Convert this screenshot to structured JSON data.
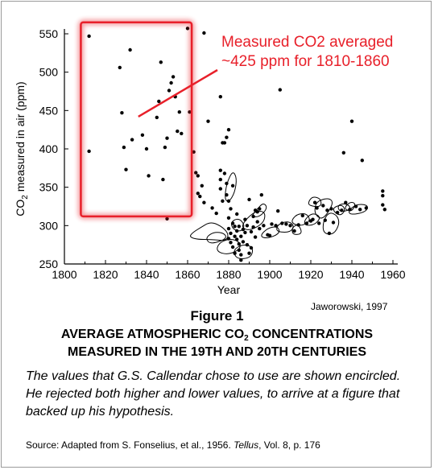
{
  "chart_data": {
    "type": "scatter",
    "title": "",
    "xlabel": "Year",
    "ylabel_parts": [
      "CO",
      "2",
      " measured in air (ppm)"
    ],
    "xlim": [
      1800,
      1965
    ],
    "ylim": [
      250,
      555
    ],
    "xticks": [
      1800,
      1820,
      1840,
      1860,
      1880,
      1900,
      1920,
      1940,
      1960
    ],
    "yticks": [
      250,
      300,
      350,
      400,
      450,
      500,
      550
    ],
    "grid": false,
    "credit": "Jaworowski, 1997",
    "annotation": {
      "line1": "Measured CO2 averaged",
      "line2": "~425 ppm for 1810-1860",
      "color": "#e8202a",
      "box_color": "#e8202a",
      "box_range": {
        "x": [
          1808,
          1862
        ],
        "y": [
          312,
          565
        ]
      },
      "arrow_from": [
        1836,
        442
      ]
    },
    "points": [
      [
        1812,
        547
      ],
      [
        1812,
        397
      ],
      [
        1827,
        506
      ],
      [
        1828,
        447
      ],
      [
        1829,
        402
      ],
      [
        1830,
        373
      ],
      [
        1832,
        529
      ],
      [
        1833,
        412
      ],
      [
        1838,
        418
      ],
      [
        1840,
        400
      ],
      [
        1841,
        365
      ],
      [
        1845,
        441
      ],
      [
        1846,
        462
      ],
      [
        1847,
        513
      ],
      [
        1848,
        360
      ],
      [
        1849,
        402
      ],
      [
        1850,
        414
      ],
      [
        1850,
        309
      ],
      [
        1851,
        476
      ],
      [
        1852,
        486
      ],
      [
        1853,
        494
      ],
      [
        1854,
        468
      ],
      [
        1855,
        423
      ],
      [
        1856,
        448
      ],
      [
        1857,
        420
      ],
      [
        1860,
        557
      ],
      [
        1861,
        448
      ],
      [
        1863,
        396
      ],
      [
        1864,
        369
      ],
      [
        1865,
        365
      ],
      [
        1865,
        342
      ],
      [
        1867,
        352
      ],
      [
        1866,
        338
      ],
      [
        1868,
        551
      ],
      [
        1868,
        330
      ],
      [
        1870,
        436
      ],
      [
        1872,
        323
      ],
      [
        1874,
        316
      ],
      [
        1876,
        468
      ],
      [
        1876,
        372
      ],
      [
        1876,
        360
      ],
      [
        1876,
        348
      ],
      [
        1877,
        408
      ],
      [
        1877,
        332
      ],
      [
        1878,
        408
      ],
      [
        1878,
        368
      ],
      [
        1879,
        415
      ],
      [
        1879,
        355
      ],
      [
        1879,
        340
      ],
      [
        1880,
        425
      ],
      [
        1880,
        332
      ],
      [
        1880,
        310
      ],
      [
        1880,
        296
      ],
      [
        1880,
        283
      ],
      [
        1881,
        322
      ],
      [
        1881,
        290
      ],
      [
        1881,
        278
      ],
      [
        1882,
        352
      ],
      [
        1882,
        303
      ],
      [
        1882,
        272
      ],
      [
        1883,
        299
      ],
      [
        1883,
        286
      ],
      [
        1883,
        264
      ],
      [
        1884,
        315
      ],
      [
        1884,
        293
      ],
      [
        1884,
        282
      ],
      [
        1885,
        299
      ],
      [
        1885,
        276
      ],
      [
        1885,
        268
      ],
      [
        1886,
        286
      ],
      [
        1886,
        262
      ],
      [
        1886,
        255
      ],
      [
        1887,
        295
      ],
      [
        1887,
        279
      ],
      [
        1888,
        308
      ],
      [
        1888,
        291
      ],
      [
        1889,
        300
      ],
      [
        1889,
        275
      ],
      [
        1890,
        334
      ],
      [
        1890,
        264
      ],
      [
        1891,
        292
      ],
      [
        1891,
        271
      ],
      [
        1892,
        312
      ],
      [
        1892,
        298
      ],
      [
        1893,
        320
      ],
      [
        1893,
        285
      ],
      [
        1894,
        318
      ],
      [
        1894,
        305
      ],
      [
        1895,
        322
      ],
      [
        1895,
        296
      ],
      [
        1896,
        340
      ],
      [
        1897,
        300
      ],
      [
        1899,
        288
      ],
      [
        1900,
        287
      ],
      [
        1901,
        302
      ],
      [
        1903,
        300
      ],
      [
        1904,
        319
      ],
      [
        1905,
        477
      ],
      [
        1906,
        303
      ],
      [
        1908,
        302
      ],
      [
        1910,
        300
      ],
      [
        1912,
        293
      ],
      [
        1914,
        301
      ],
      [
        1916,
        313
      ],
      [
        1918,
        303
      ],
      [
        1920,
        306
      ],
      [
        1921,
        308
      ],
      [
        1922,
        330
      ],
      [
        1923,
        323
      ],
      [
        1924,
        303
      ],
      [
        1926,
        326
      ],
      [
        1927,
        307
      ],
      [
        1928,
        320
      ],
      [
        1929,
        290
      ],
      [
        1930,
        322
      ],
      [
        1931,
        304
      ],
      [
        1933,
        317
      ],
      [
        1935,
        320
      ],
      [
        1936,
        395
      ],
      [
        1937,
        330
      ],
      [
        1939,
        321
      ],
      [
        1940,
        436
      ],
      [
        1942,
        325
      ],
      [
        1944,
        321
      ],
      [
        1945,
        385
      ],
      [
        1947,
        323
      ],
      [
        1955,
        345
      ],
      [
        1955,
        339
      ],
      [
        1955,
        327
      ],
      [
        1956,
        321
      ]
    ],
    "circled_groups": [
      [
        [
          1862,
          290
        ],
        [
          1866,
          297
        ],
        [
          1871,
          305
        ],
        [
          1876,
          300
        ],
        [
          1880,
          290
        ],
        [
          1879,
          280
        ],
        [
          1871,
          282
        ],
        [
          1865,
          282
        ],
        [
          1861,
          285
        ]
      ],
      [
        [
          1869,
          285
        ],
        [
          1873,
          292
        ],
        [
          1878,
          290
        ],
        [
          1879,
          283
        ],
        [
          1873,
          277
        ],
        [
          1870,
          278
        ]
      ],
      [
        [
          1875,
          277
        ],
        [
          1880,
          283
        ],
        [
          1885,
          280
        ],
        [
          1886,
          270
        ],
        [
          1880,
          262
        ],
        [
          1874,
          266
        ]
      ],
      [
        [
          1880,
          330
        ],
        [
          1883,
          343
        ],
        [
          1884,
          362
        ],
        [
          1882,
          372
        ],
        [
          1879,
          355
        ],
        [
          1878,
          335
        ]
      ],
      [
        [
          1881,
          305
        ],
        [
          1885,
          310
        ],
        [
          1888,
          300
        ],
        [
          1886,
          292
        ],
        [
          1882,
          295
        ]
      ],
      [
        [
          1882,
          268
        ],
        [
          1887,
          276
        ],
        [
          1892,
          272
        ],
        [
          1891,
          258
        ],
        [
          1884,
          256
        ]
      ],
      [
        [
          1886,
          298
        ],
        [
          1889,
          310
        ],
        [
          1894,
          320
        ],
        [
          1898,
          317
        ],
        [
          1897,
          303
        ],
        [
          1890,
          293
        ]
      ],
      [
        [
          1891,
          312
        ],
        [
          1894,
          322
        ],
        [
          1897,
          330
        ],
        [
          1899,
          323
        ],
        [
          1895,
          311
        ]
      ],
      [
        [
          1895,
          286
        ],
        [
          1899,
          297
        ],
        [
          1904,
          299
        ],
        [
          1905,
          290
        ],
        [
          1899,
          283
        ]
      ],
      [
        [
          1904,
          302
        ],
        [
          1909,
          306
        ],
        [
          1912,
          300
        ],
        [
          1910,
          291
        ],
        [
          1903,
          292
        ]
      ],
      [
        [
          1910,
          304
        ],
        [
          1913,
          315
        ],
        [
          1918,
          316
        ],
        [
          1920,
          306
        ],
        [
          1915,
          299
        ]
      ],
      [
        [
          1911,
          298
        ],
        [
          1914,
          302
        ],
        [
          1916,
          289
        ],
        [
          1911,
          288
        ]
      ],
      [
        [
          1917,
          308
        ],
        [
          1921,
          317
        ],
        [
          1925,
          311
        ],
        [
          1922,
          301
        ],
        [
          1917,
          300
        ]
      ],
      [
        [
          1919,
          332
        ],
        [
          1921,
          338
        ],
        [
          1925,
          335
        ],
        [
          1925,
          324
        ],
        [
          1919,
          326
        ]
      ],
      [
        [
          1922,
          326
        ],
        [
          1924,
          333
        ],
        [
          1929,
          336
        ],
        [
          1931,
          330
        ],
        [
          1928,
          315
        ],
        [
          1925,
          308
        ],
        [
          1922,
          315
        ]
      ],
      [
        [
          1926,
          306
        ],
        [
          1929,
          318
        ],
        [
          1933,
          313
        ],
        [
          1934,
          302
        ],
        [
          1931,
          288
        ],
        [
          1926,
          290
        ]
      ],
      [
        [
          1930,
          322
        ],
        [
          1935,
          328
        ],
        [
          1937,
          320
        ],
        [
          1934,
          312
        ]
      ],
      [
        [
          1933,
          326
        ],
        [
          1936,
          329
        ],
        [
          1939,
          326
        ],
        [
          1939,
          320
        ],
        [
          1934,
          318
        ]
      ],
      [
        [
          1936,
          322
        ],
        [
          1939,
          331
        ],
        [
          1942,
          329
        ],
        [
          1940,
          318
        ]
      ],
      [
        [
          1938,
          318
        ],
        [
          1942,
          328
        ],
        [
          1948,
          327
        ],
        [
          1947,
          318
        ],
        [
          1940,
          314
        ]
      ]
    ]
  },
  "figure": {
    "label": "Figure 1",
    "headline_1a": "AVERAGE ATMOSPHERIC CO",
    "headline_1sub": "2",
    "headline_1b": " CONCENTRATIONS",
    "headline_2": "MEASURED IN THE 19TH AND 20TH CENTURIES",
    "description": "The values that G.S. Callendar chose to use are shown encircled. He rejected both higher and lower values, to arrive at a figure that backed up his hypothesis.",
    "source_prefix": "Source: Adapted from S. Fonselius, et al., 1956. ",
    "source_journal": "Tellus",
    "source_suffix": ", Vol. 8, p. 176"
  }
}
